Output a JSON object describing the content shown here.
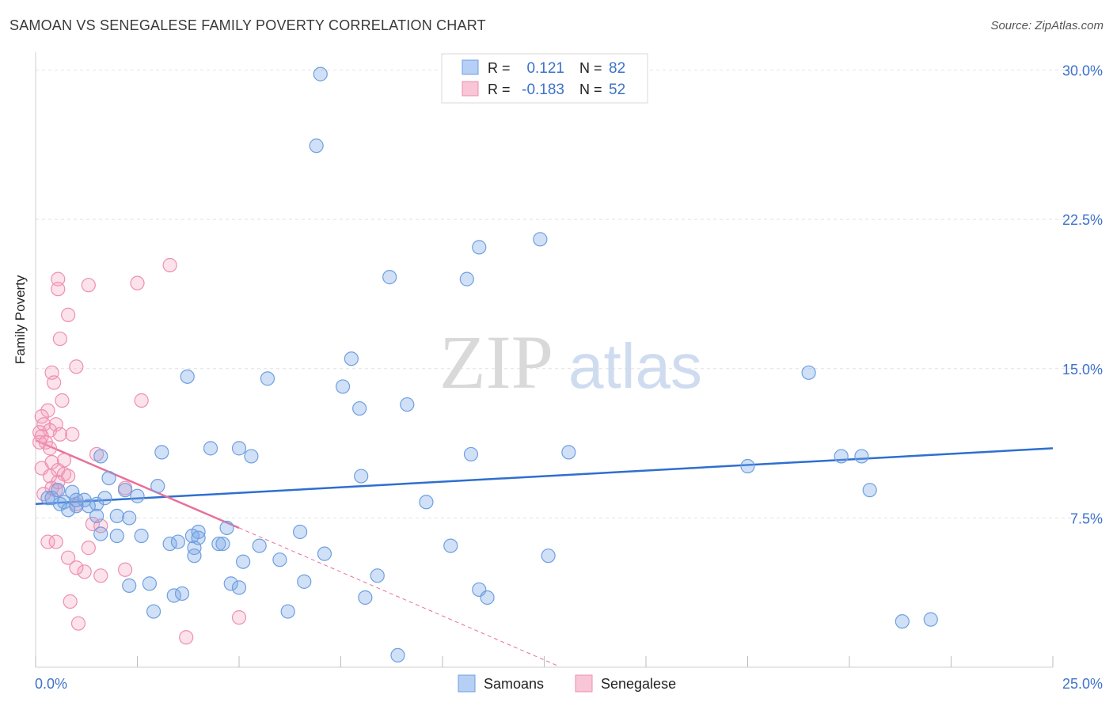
{
  "title": "SAMOAN VS SENEGALESE FAMILY POVERTY CORRELATION CHART",
  "source": "Source: ZipAtlas.com",
  "watermark": {
    "zip": "ZIP",
    "atlas": "atlas"
  },
  "chart_data": {
    "type": "scatter",
    "xlabel": "",
    "ylabel": "Family Poverty",
    "xlim": [
      0,
      25
    ],
    "ylim": [
      0,
      30.5
    ],
    "x_tick_labels": [
      "0.0%",
      "25.0%"
    ],
    "y_ticks": [
      7.5,
      15.0,
      22.5,
      30.0
    ],
    "y_tick_labels": [
      "7.5%",
      "15.0%",
      "22.5%",
      "30.0%"
    ],
    "grid": true,
    "legend_top": [
      {
        "r_label": "R =",
        "r_value": "0.121",
        "n_label": "N =",
        "n_value": "82",
        "color": "#6b9ee8"
      },
      {
        "r_label": "R =",
        "r_value": "-0.183",
        "n_label": "N =",
        "n_value": "52",
        "color": "#f08aab"
      }
    ],
    "legend_bottom": [
      "Samoans",
      "Senegalese"
    ],
    "colors": {
      "samoans_fill": "rgba(120,165,230,0.35)",
      "samoans_stroke": "#6f9fe0",
      "samoans_line": "#2e6fcf",
      "senegalese_fill": "rgba(245,160,190,0.30)",
      "senegalese_stroke": "#ee8fb0",
      "senegalese_line": "#e8709a",
      "tick_label": "#3d72c9"
    },
    "series": [
      {
        "name": "Samoans",
        "trend": {
          "x": [
            0.0,
            25.0
          ],
          "y": [
            8.2,
            11.0
          ]
        },
        "points": [
          [
            7.0,
            29.8
          ],
          [
            6.9,
            26.2
          ],
          [
            12.4,
            21.5
          ],
          [
            10.9,
            21.1
          ],
          [
            8.7,
            19.6
          ],
          [
            10.6,
            19.5
          ],
          [
            3.73,
            14.6
          ],
          [
            5.7,
            14.5
          ],
          [
            7.76,
            15.5
          ],
          [
            7.55,
            14.1
          ],
          [
            19.0,
            14.8
          ],
          [
            7.96,
            13.0
          ],
          [
            9.13,
            13.2
          ],
          [
            10.7,
            10.7
          ],
          [
            13.1,
            10.8
          ],
          [
            1.6,
            10.6
          ],
          [
            3.1,
            10.8
          ],
          [
            4.3,
            11.0
          ],
          [
            5.0,
            11.0
          ],
          [
            5.3,
            10.6
          ],
          [
            17.5,
            10.1
          ],
          [
            19.8,
            10.6
          ],
          [
            20.3,
            10.6
          ],
          [
            20.5,
            8.9
          ],
          [
            1.8,
            9.5
          ],
          [
            2.2,
            8.9
          ],
          [
            3.0,
            9.1
          ],
          [
            8.0,
            9.6
          ],
          [
            9.6,
            8.3
          ],
          [
            0.3,
            8.5
          ],
          [
            0.55,
            8.9
          ],
          [
            0.9,
            8.8
          ],
          [
            1.2,
            8.4
          ],
          [
            1.5,
            8.2
          ],
          [
            1.7,
            8.5
          ],
          [
            0.7,
            8.3
          ],
          [
            1.0,
            8.1
          ],
          [
            1.3,
            8.1
          ],
          [
            1.0,
            8.4
          ],
          [
            0.6,
            8.2
          ],
          [
            2.5,
            8.6
          ],
          [
            1.5,
            7.6
          ],
          [
            2.0,
            7.6
          ],
          [
            2.3,
            7.5
          ],
          [
            4.0,
            6.8
          ],
          [
            4.7,
            7.0
          ],
          [
            6.5,
            6.8
          ],
          [
            1.6,
            6.7
          ],
          [
            2.0,
            6.6
          ],
          [
            2.6,
            6.6
          ],
          [
            3.3,
            6.2
          ],
          [
            3.5,
            6.3
          ],
          [
            3.85,
            6.6
          ],
          [
            4.5,
            6.2
          ],
          [
            4.6,
            6.2
          ],
          [
            3.9,
            6.0
          ],
          [
            5.5,
            6.1
          ],
          [
            10.2,
            6.1
          ],
          [
            7.1,
            5.7
          ],
          [
            12.6,
            5.6
          ],
          [
            3.9,
            5.6
          ],
          [
            5.1,
            5.3
          ],
          [
            6.0,
            5.4
          ],
          [
            8.4,
            4.6
          ],
          [
            6.6,
            4.3
          ],
          [
            2.3,
            4.1
          ],
          [
            2.8,
            4.2
          ],
          [
            4.8,
            4.2
          ],
          [
            5.0,
            4.0
          ],
          [
            10.9,
            3.9
          ],
          [
            3.4,
            3.6
          ],
          [
            3.6,
            3.7
          ],
          [
            8.1,
            3.5
          ],
          [
            11.1,
            3.5
          ],
          [
            2.9,
            2.8
          ],
          [
            6.2,
            2.8
          ],
          [
            21.3,
            2.3
          ],
          [
            22.0,
            2.4
          ],
          [
            8.9,
            0.6
          ],
          [
            4.0,
            6.5
          ],
          [
            0.4,
            8.5
          ],
          [
            0.8,
            7.9
          ]
        ]
      },
      {
        "name": "Senegalese",
        "trend": {
          "x": [
            0.0,
            5.0
          ],
          "y": [
            11.4,
            7.0
          ]
        },
        "trend_dashed": {
          "x": [
            5.0,
            12.8
          ],
          "y": [
            7.0,
            0.1
          ]
        },
        "points": [
          [
            3.3,
            20.2
          ],
          [
            0.55,
            19.5
          ],
          [
            2.5,
            19.3
          ],
          [
            1.3,
            19.2
          ],
          [
            0.55,
            19.0
          ],
          [
            0.8,
            17.7
          ],
          [
            0.6,
            16.5
          ],
          [
            1.0,
            15.1
          ],
          [
            0.4,
            14.8
          ],
          [
            0.45,
            14.3
          ],
          [
            2.6,
            13.4
          ],
          [
            0.65,
            13.4
          ],
          [
            0.3,
            12.9
          ],
          [
            0.15,
            12.6
          ],
          [
            0.2,
            12.2
          ],
          [
            0.5,
            12.2
          ],
          [
            0.35,
            11.9
          ],
          [
            0.1,
            11.8
          ],
          [
            0.15,
            11.6
          ],
          [
            0.25,
            11.3
          ],
          [
            0.9,
            11.7
          ],
          [
            0.6,
            11.7
          ],
          [
            0.1,
            11.3
          ],
          [
            0.35,
            11.0
          ],
          [
            1.5,
            10.7
          ],
          [
            0.7,
            10.4
          ],
          [
            0.4,
            10.3
          ],
          [
            0.15,
            10.0
          ],
          [
            0.55,
            9.9
          ],
          [
            0.7,
            9.7
          ],
          [
            0.35,
            9.6
          ],
          [
            0.8,
            9.6
          ],
          [
            0.55,
            9.3
          ],
          [
            0.4,
            9.0
          ],
          [
            0.5,
            8.9
          ],
          [
            0.2,
            8.7
          ],
          [
            2.2,
            9.0
          ],
          [
            1.0,
            8.2
          ],
          [
            1.4,
            7.2
          ],
          [
            1.6,
            7.1
          ],
          [
            0.3,
            6.3
          ],
          [
            0.5,
            6.3
          ],
          [
            1.3,
            6.0
          ],
          [
            0.8,
            5.5
          ],
          [
            1.0,
            5.0
          ],
          [
            2.2,
            4.9
          ],
          [
            1.2,
            4.8
          ],
          [
            1.6,
            4.6
          ],
          [
            0.85,
            3.3
          ],
          [
            5.0,
            2.5
          ],
          [
            1.05,
            2.2
          ],
          [
            3.7,
            1.5
          ]
        ]
      }
    ]
  }
}
